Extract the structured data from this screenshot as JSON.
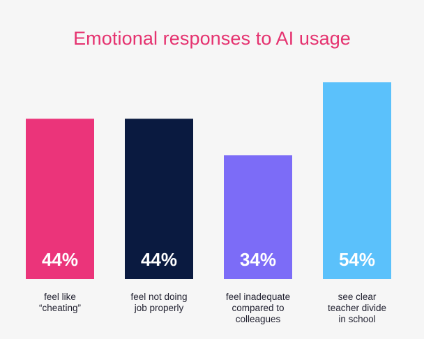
{
  "colors": {
    "background": "#f6f6f6",
    "title": "#e5326f",
    "label_text": "#1f1f2e",
    "value_text": "#ffffff"
  },
  "chart_data": {
    "type": "bar",
    "title": "Emotional responses to AI usage",
    "xlabel": "",
    "ylabel": "",
    "ylim": [
      0,
      54
    ],
    "grid": false,
    "value_format": "{v}%",
    "categories": [
      [
        "feel like",
        "“cheating”"
      ],
      [
        "feel not doing",
        "job properly"
      ],
      [
        "feel inadequate",
        "compared to",
        "colleagues"
      ],
      [
        "see clear",
        "teacher divide",
        "in school"
      ]
    ],
    "values": [
      44,
      44,
      34,
      54
    ],
    "bar_colors": [
      "#eb347a",
      "#0a1a40",
      "#7c6cf7",
      "#5bc1fb"
    ]
  }
}
